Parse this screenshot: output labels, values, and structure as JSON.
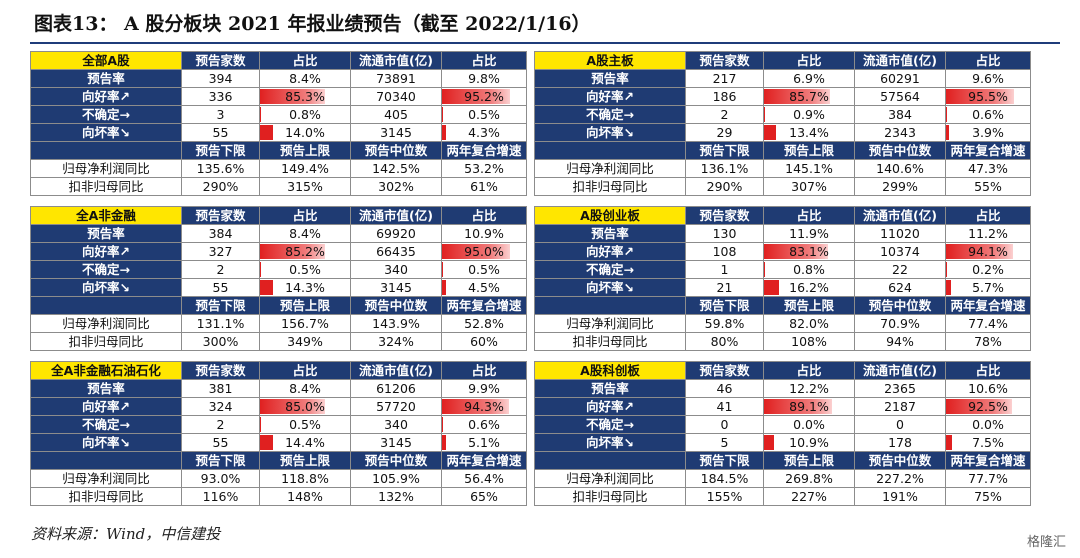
{
  "title": "图表13：  A 股分板块 2021 年报业绩预告（截至 2022/1/16）",
  "source": "资料来源：Wind，中信建投",
  "watermark": "格隆汇",
  "headers": [
    "预告家数",
    "占比",
    "流通市值(亿)",
    "占比"
  ],
  "stat_headers": [
    "预告下限",
    "预告上限",
    "预告中位数",
    "两年复合增速"
  ],
  "row_labels": [
    "预告率",
    "向好率↗",
    "不确定→",
    "向坏率↘"
  ],
  "stat_labels": [
    "归母净利润同比",
    "扣非归母同比"
  ],
  "colors": {
    "header_bg": "#1f3b73",
    "name_bg": "#ffe600",
    "bar": "#e02020",
    "rule": "#1f3c7a"
  },
  "panels": [
    {
      "name": "全部A股",
      "rows": [
        [
          "394",
          "8.4%",
          "73891",
          "9.8%"
        ],
        [
          "336",
          "85.3%",
          "70340",
          "95.2%"
        ],
        [
          "3",
          "0.8%",
          "405",
          "0.5%"
        ],
        [
          "55",
          "14.0%",
          "3145",
          "4.3%"
        ]
      ],
      "stats": [
        [
          "135.6%",
          "149.4%",
          "142.5%",
          "53.2%"
        ],
        [
          "290%",
          "315%",
          "302%",
          "61%"
        ]
      ]
    },
    {
      "name": "A股主板",
      "rows": [
        [
          "217",
          "6.9%",
          "60291",
          "9.6%"
        ],
        [
          "186",
          "85.7%",
          "57564",
          "95.5%"
        ],
        [
          "2",
          "0.9%",
          "384",
          "0.6%"
        ],
        [
          "29",
          "13.4%",
          "2343",
          "3.9%"
        ]
      ],
      "stats": [
        [
          "136.1%",
          "145.1%",
          "140.6%",
          "47.3%"
        ],
        [
          "290%",
          "307%",
          "299%",
          "55%"
        ]
      ]
    },
    {
      "name": "全A非金融",
      "rows": [
        [
          "384",
          "8.4%",
          "69920",
          "10.9%"
        ],
        [
          "327",
          "85.2%",
          "66435",
          "95.0%"
        ],
        [
          "2",
          "0.5%",
          "340",
          "0.5%"
        ],
        [
          "55",
          "14.3%",
          "3145",
          "4.5%"
        ]
      ],
      "stats": [
        [
          "131.1%",
          "156.7%",
          "143.9%",
          "52.8%"
        ],
        [
          "300%",
          "349%",
          "324%",
          "60%"
        ]
      ]
    },
    {
      "name": "A股创业板",
      "rows": [
        [
          "130",
          "11.9%",
          "11020",
          "11.2%"
        ],
        [
          "108",
          "83.1%",
          "10374",
          "94.1%"
        ],
        [
          "1",
          "0.8%",
          "22",
          "0.2%"
        ],
        [
          "21",
          "16.2%",
          "624",
          "5.7%"
        ]
      ],
      "stats": [
        [
          "59.8%",
          "82.0%",
          "70.9%",
          "77.4%"
        ],
        [
          "80%",
          "108%",
          "94%",
          "78%"
        ]
      ]
    },
    {
      "name": "全A非金融石油石化",
      "rows": [
        [
          "381",
          "8.4%",
          "61206",
          "9.9%"
        ],
        [
          "324",
          "85.0%",
          "57720",
          "94.3%"
        ],
        [
          "2",
          "0.5%",
          "340",
          "0.6%"
        ],
        [
          "55",
          "14.4%",
          "3145",
          "5.1%"
        ]
      ],
      "stats": [
        [
          "93.0%",
          "118.8%",
          "105.9%",
          "56.4%"
        ],
        [
          "116%",
          "148%",
          "132%",
          "65%"
        ]
      ]
    },
    {
      "name": "A股科创板",
      "rows": [
        [
          "46",
          "12.2%",
          "2365",
          "10.6%"
        ],
        [
          "41",
          "89.1%",
          "2187",
          "92.5%"
        ],
        [
          "0",
          "0.0%",
          "0",
          "0.0%"
        ],
        [
          "5",
          "10.9%",
          "178",
          "7.5%"
        ]
      ],
      "stats": [
        [
          "184.5%",
          "269.8%",
          "227.2%",
          "77.7%"
        ],
        [
          "155%",
          "227%",
          "191%",
          "75%"
        ]
      ]
    }
  ]
}
